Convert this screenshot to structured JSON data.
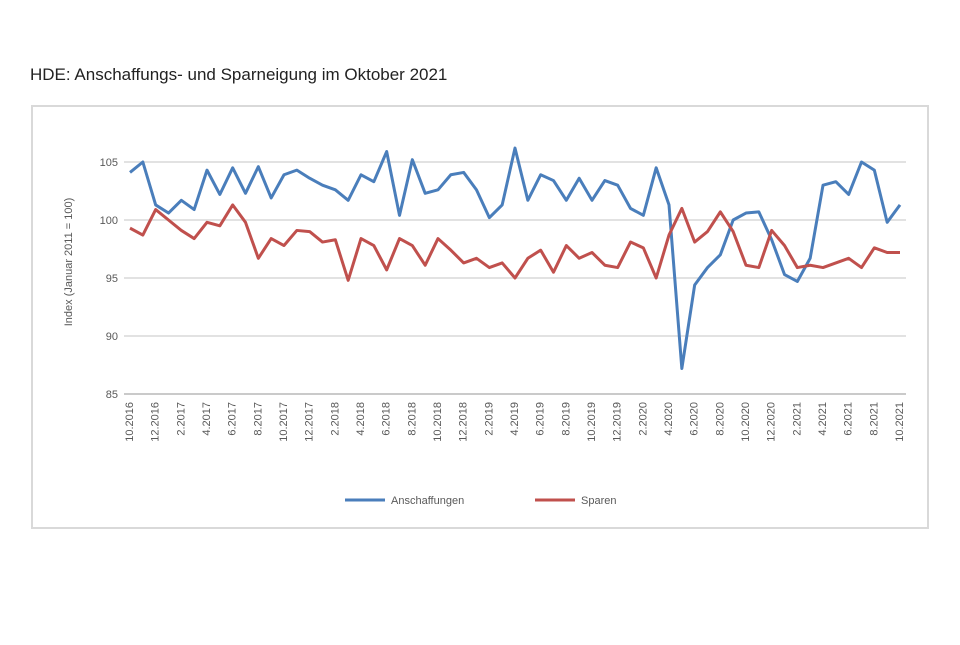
{
  "chart_data": {
    "type": "line",
    "title": "HDE: Anschaffungs- und Sparneigung im Oktober 2021",
    "y_label": "Index (Januar 2011 = 100)",
    "categories": [
      "10.2016",
      null,
      "12.2016",
      null,
      "2.2017",
      null,
      "4.2017",
      null,
      "6.2017",
      null,
      "8.2017",
      null,
      "10.2017",
      null,
      "12.2017",
      null,
      "2.2018",
      null,
      "4.2018",
      null,
      "6.2018",
      null,
      "8.2018",
      null,
      "10.2018",
      null,
      "12.2018",
      null,
      "2.2019",
      null,
      "4.2019",
      null,
      "6.2019",
      null,
      "8.2019",
      null,
      "10.2019",
      null,
      "12.2019",
      null,
      "2.2020",
      null,
      "4.2020",
      null,
      "6.2020",
      null,
      "8.2020",
      null,
      "10.2020",
      null,
      "12.2020",
      null,
      "2.2021",
      null,
      "4.2021",
      null,
      "6.2021",
      null,
      "8.2021",
      null,
      "10.2021"
    ],
    "series": [
      {
        "name": "Anschaffungen",
        "color": "#4a7ebb",
        "values": [
          104.1,
          105,
          101.3,
          100.6,
          101.7,
          100.9,
          104.3,
          102.2,
          104.5,
          102.3,
          104.6,
          101.9,
          103.9,
          104.3,
          103.6,
          103.0,
          102.6,
          101.7,
          103.9,
          103.3,
          105.9,
          100.4,
          105.2,
          102.3,
          102.6,
          103.9,
          104.1,
          102.6,
          100.2,
          101.3,
          106.2,
          101.7,
          103.9,
          103.4,
          101.7,
          103.6,
          101.7,
          103.4,
          103.0,
          101.0,
          100.4,
          104.5,
          101.3,
          87.2,
          94.4,
          95.9,
          97.0,
          100.0,
          100.6,
          100.7,
          98.3,
          95.3,
          94.7,
          96.7,
          103.0,
          103.3,
          102.2,
          105.0,
          104.3,
          99.8,
          101.3
        ]
      },
      {
        "name": "Sparen",
        "color": "#c0504d",
        "values": [
          99.3,
          98.7,
          100.9,
          100,
          99.1,
          98.4,
          99.8,
          99.5,
          101.3,
          99.8,
          96.7,
          98.4,
          97.8,
          99.1,
          99.0,
          98.1,
          98.3,
          94.8,
          98.4,
          97.8,
          95.7,
          98.4,
          97.8,
          96.1,
          98.4,
          97.4,
          96.3,
          96.7,
          95.9,
          96.3,
          95.0,
          96.7,
          97.4,
          95.5,
          97.8,
          96.7,
          97.2,
          96.1,
          95.9,
          98.1,
          97.6,
          95.0,
          98.7,
          101.0,
          98.1,
          99.0,
          100.7,
          99.0,
          96.1,
          95.9,
          99.1,
          97.8,
          95.9,
          96.1,
          95.9,
          96.3,
          96.7,
          95.9,
          97.6,
          97.2,
          97.2
        ]
      }
    ],
    "ylim": [
      85,
      105
    ],
    "yticks": [
      85,
      90,
      95,
      100,
      105
    ],
    "grid": true,
    "legend": "bottom"
  }
}
